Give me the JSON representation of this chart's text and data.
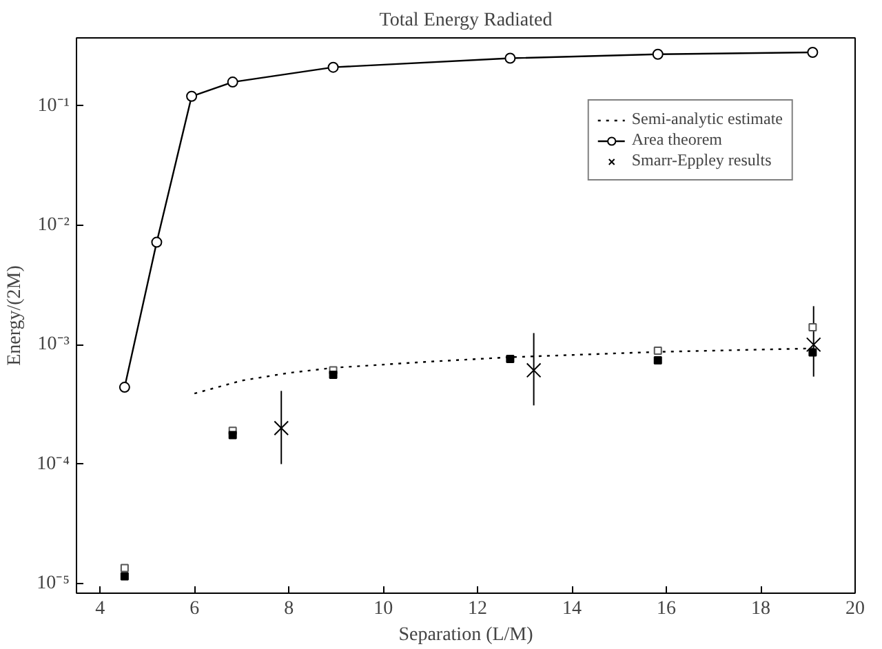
{
  "chart_data": {
    "type": "line",
    "title": "Total Energy Radiated",
    "xlabel": "Separation (L/M)",
    "ylabel": "Energy/(2M)",
    "log": "y",
    "grid": false,
    "legend": "top right",
    "xlim": [
      3.5,
      20
    ],
    "xticks": [
      4,
      6,
      8,
      10,
      12,
      14,
      16,
      18,
      20
    ],
    "ylim": [
      8.3e-06,
      0.37
    ],
    "yticks": [
      {
        "value": 1e-05,
        "label": "10⁻⁵"
      },
      {
        "value": 0.0001,
        "label": "10⁻⁴"
      },
      {
        "value": 0.001,
        "label": "10⁻³"
      },
      {
        "value": 0.01,
        "label": "10⁻²"
      },
      {
        "value": 0.1,
        "label": "10⁻¹"
      }
    ],
    "series": [
      {
        "name": "Semi-analytic estimate",
        "line_style": "dotted",
        "marker": "none",
        "color": "#000000",
        "x": [
          6.0,
          7,
          8,
          8.94,
          10.97,
          12.69,
          15.82,
          19.1
        ],
        "values": [
          0.00039,
          0.0005,
          0.00058,
          0.00064,
          0.00072,
          0.000785,
          0.00087,
          0.00093
        ]
      },
      {
        "name": "Area theorem",
        "line_style": "solid",
        "marker": "circle",
        "color": "#000000",
        "x": [
          4.52,
          5.2,
          5.94,
          6.81,
          8.94,
          12.69,
          15.82,
          19.1
        ],
        "values": [
          0.00044,
          0.0072,
          0.12,
          0.158,
          0.21,
          0.25,
          0.27,
          0.28
        ]
      },
      {
        "name": "Smarr-Eppley results",
        "type": "scatter",
        "marker": "cross",
        "color": "#000000",
        "x": [
          7.84,
          13.19,
          19.12
        ],
        "values": [
          0.0002,
          0.00061,
          0.001
        ],
        "errors": [
          [
            0.0001,
            0.00041
          ],
          [
            0.00031,
            0.00125
          ],
          [
            0.00054,
            0.0021
          ]
        ]
      },
      {
        "type": "scatter",
        "marker": "square",
        "color": "#555555",
        "x": [
          4.52,
          6.81,
          8.94,
          12.69,
          15.82,
          19.1
        ],
        "values": [
          1.35e-05,
          0.00019,
          0.00061,
          null,
          0.00089,
          0.0014
        ]
      },
      {
        "type": "scatter",
        "marker": "square",
        "color": "#000000",
        "x": [
          4.52,
          6.81,
          8.94,
          12.69,
          15.82,
          19.1
        ],
        "values": [
          1.15e-05,
          0.000175,
          0.00056,
          0.00076,
          0.00074,
          0.00086
        ]
      }
    ]
  }
}
